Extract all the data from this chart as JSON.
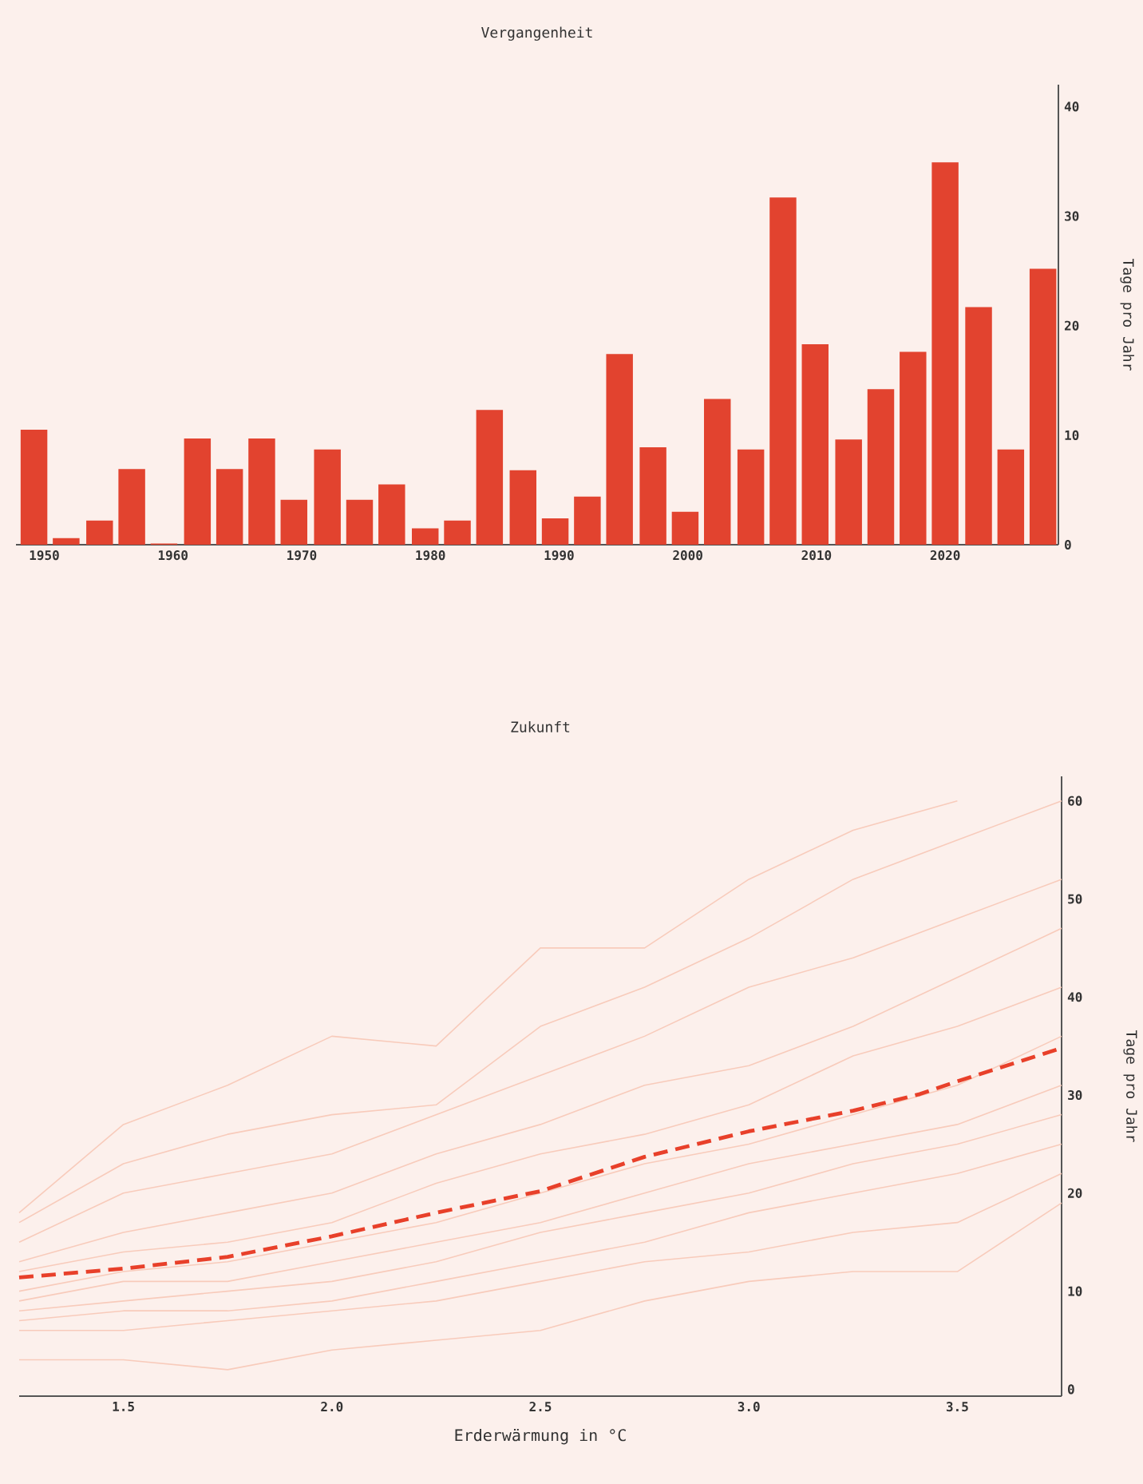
{
  "chart_data": [
    {
      "type": "bar",
      "title": "Vergangenheit",
      "ylabel": "Tage pro Jahr",
      "color": "#e2432f",
      "x": [
        1949.2,
        1951.7,
        1954.3,
        1956.8,
        1959.3,
        1961.9,
        1964.4,
        1966.9,
        1969.4,
        1972.0,
        1974.5,
        1977.0,
        1979.6,
        1982.1,
        1984.6,
        1987.2,
        1989.7,
        1992.2,
        1994.7,
        1997.3,
        1999.8,
        2002.3,
        2004.9,
        2007.4,
        2009.9,
        2012.5,
        2015.0,
        2017.5,
        2020.0,
        2022.6,
        2025.1,
        2027.6
      ],
      "values": [
        10.5,
        0.6,
        2.2,
        6.9,
        0.1,
        9.7,
        6.9,
        9.7,
        4.1,
        8.7,
        4.1,
        5.5,
        1.5,
        2.2,
        12.3,
        6.8,
        2.4,
        4.4,
        17.4,
        8.9,
        3.0,
        13.3,
        8.7,
        31.7,
        18.3,
        9.6,
        14.2,
        17.6,
        34.9,
        21.7,
        8.7,
        25.2
      ],
      "xlim": [
        1947.8,
        2028.8
      ],
      "ylim": [
        0,
        42
      ],
      "xticks": [
        1950,
        1960,
        1970,
        1980,
        1990,
        2000,
        2010,
        2020
      ],
      "yticks": [
        0,
        10,
        20,
        30,
        40
      ]
    },
    {
      "type": "line",
      "title": "Zukunft",
      "xlabel": "Erderwärmung in °C",
      "ylabel": "Tage pro Jahr",
      "x": [
        1.25,
        1.5,
        1.75,
        2.0,
        2.25,
        2.5,
        2.75,
        3.0,
        3.25,
        3.5,
        3.75
      ],
      "series": [
        {
          "color": "#f8cbbb",
          "values": [
            18,
            27,
            31,
            36,
            35,
            45,
            45,
            52,
            57,
            60,
            null
          ]
        },
        {
          "color": "#f8cbbb",
          "values": [
            17,
            23,
            26,
            28,
            29,
            37,
            41,
            46,
            52,
            56,
            60
          ]
        },
        {
          "color": "#f8cbbb",
          "values": [
            15,
            20,
            22,
            24,
            28,
            32,
            36,
            41,
            44,
            48,
            52
          ]
        },
        {
          "color": "#f8cbbb",
          "values": [
            13,
            16,
            18,
            20,
            24,
            27,
            31,
            33,
            37,
            42,
            47
          ]
        },
        {
          "color": "#f8cbbb",
          "values": [
            12,
            14,
            15,
            17,
            21,
            24,
            26,
            29,
            34,
            37,
            41
          ]
        },
        {
          "color": "#f8cbbb",
          "values": [
            10,
            12,
            13,
            15,
            17,
            20,
            23,
            25,
            28,
            31,
            36
          ]
        },
        {
          "color": "#f8cbbb",
          "values": [
            9,
            11,
            11,
            13,
            15,
            17,
            20,
            23,
            25,
            27,
            31
          ]
        },
        {
          "color": "#f8cbbb",
          "values": [
            8,
            9,
            10,
            11,
            13,
            16,
            18,
            20,
            23,
            25,
            28
          ]
        },
        {
          "color": "#f8cbbb",
          "values": [
            7,
            8,
            8,
            9,
            11,
            13,
            15,
            18,
            20,
            22,
            25
          ]
        },
        {
          "color": "#f8cbbb",
          "values": [
            6,
            6,
            7,
            8,
            9,
            11,
            13,
            14,
            16,
            17,
            22
          ]
        },
        {
          "color": "#f8cbbb",
          "values": [
            3,
            3,
            2,
            4,
            5,
            6,
            9,
            11,
            12,
            12,
            19
          ]
        },
        {
          "color": "#e8402a",
          "line_style": "dashed",
          "x": [
            1.25,
            1.5,
            1.75,
            2.0,
            2.25,
            2.5,
            2.75,
            3.0,
            3.25,
            3.41,
            3.5,
            3.75
          ],
          "values": [
            11.4,
            12.3,
            13.5,
            15.6,
            18.0,
            20.2,
            23.7,
            26.3,
            28.4,
            30.1,
            31.4,
            34.8
          ]
        }
      ],
      "xlim": [
        1.25,
        3.75
      ],
      "ylim": [
        -0.7,
        62.5
      ],
      "xticks": [
        {
          "value": 1.5,
          "label": "1.5"
        },
        {
          "value": 2.0,
          "label": "2.0"
        },
        {
          "value": 2.5,
          "label": "2.5"
        },
        {
          "value": 3.0,
          "label": "3.0"
        },
        {
          "value": 3.5,
          "label": "3.5"
        }
      ],
      "yticks": [
        0,
        10,
        20,
        30,
        40,
        50,
        60
      ]
    }
  ]
}
